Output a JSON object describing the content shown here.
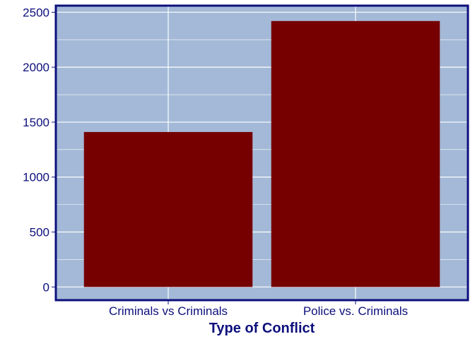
{
  "chart_data": {
    "type": "bar",
    "title": "",
    "xlabel": "Type of Conflict",
    "ylabel": "",
    "categories": [
      "Criminals vs Criminals",
      "Police vs. Criminals"
    ],
    "values": [
      1410,
      2420
    ],
    "ylim": [
      -120,
      2560
    ],
    "yticks": [
      0,
      500,
      1000,
      1500,
      2000,
      2500
    ],
    "grid": true,
    "legend": "none"
  },
  "colors": {
    "bar": "#760000",
    "panel_background": "#a3b9d7",
    "panel_border": "#0d0f7c",
    "grid": "#ffffff",
    "text": "#0d0f7c"
  }
}
